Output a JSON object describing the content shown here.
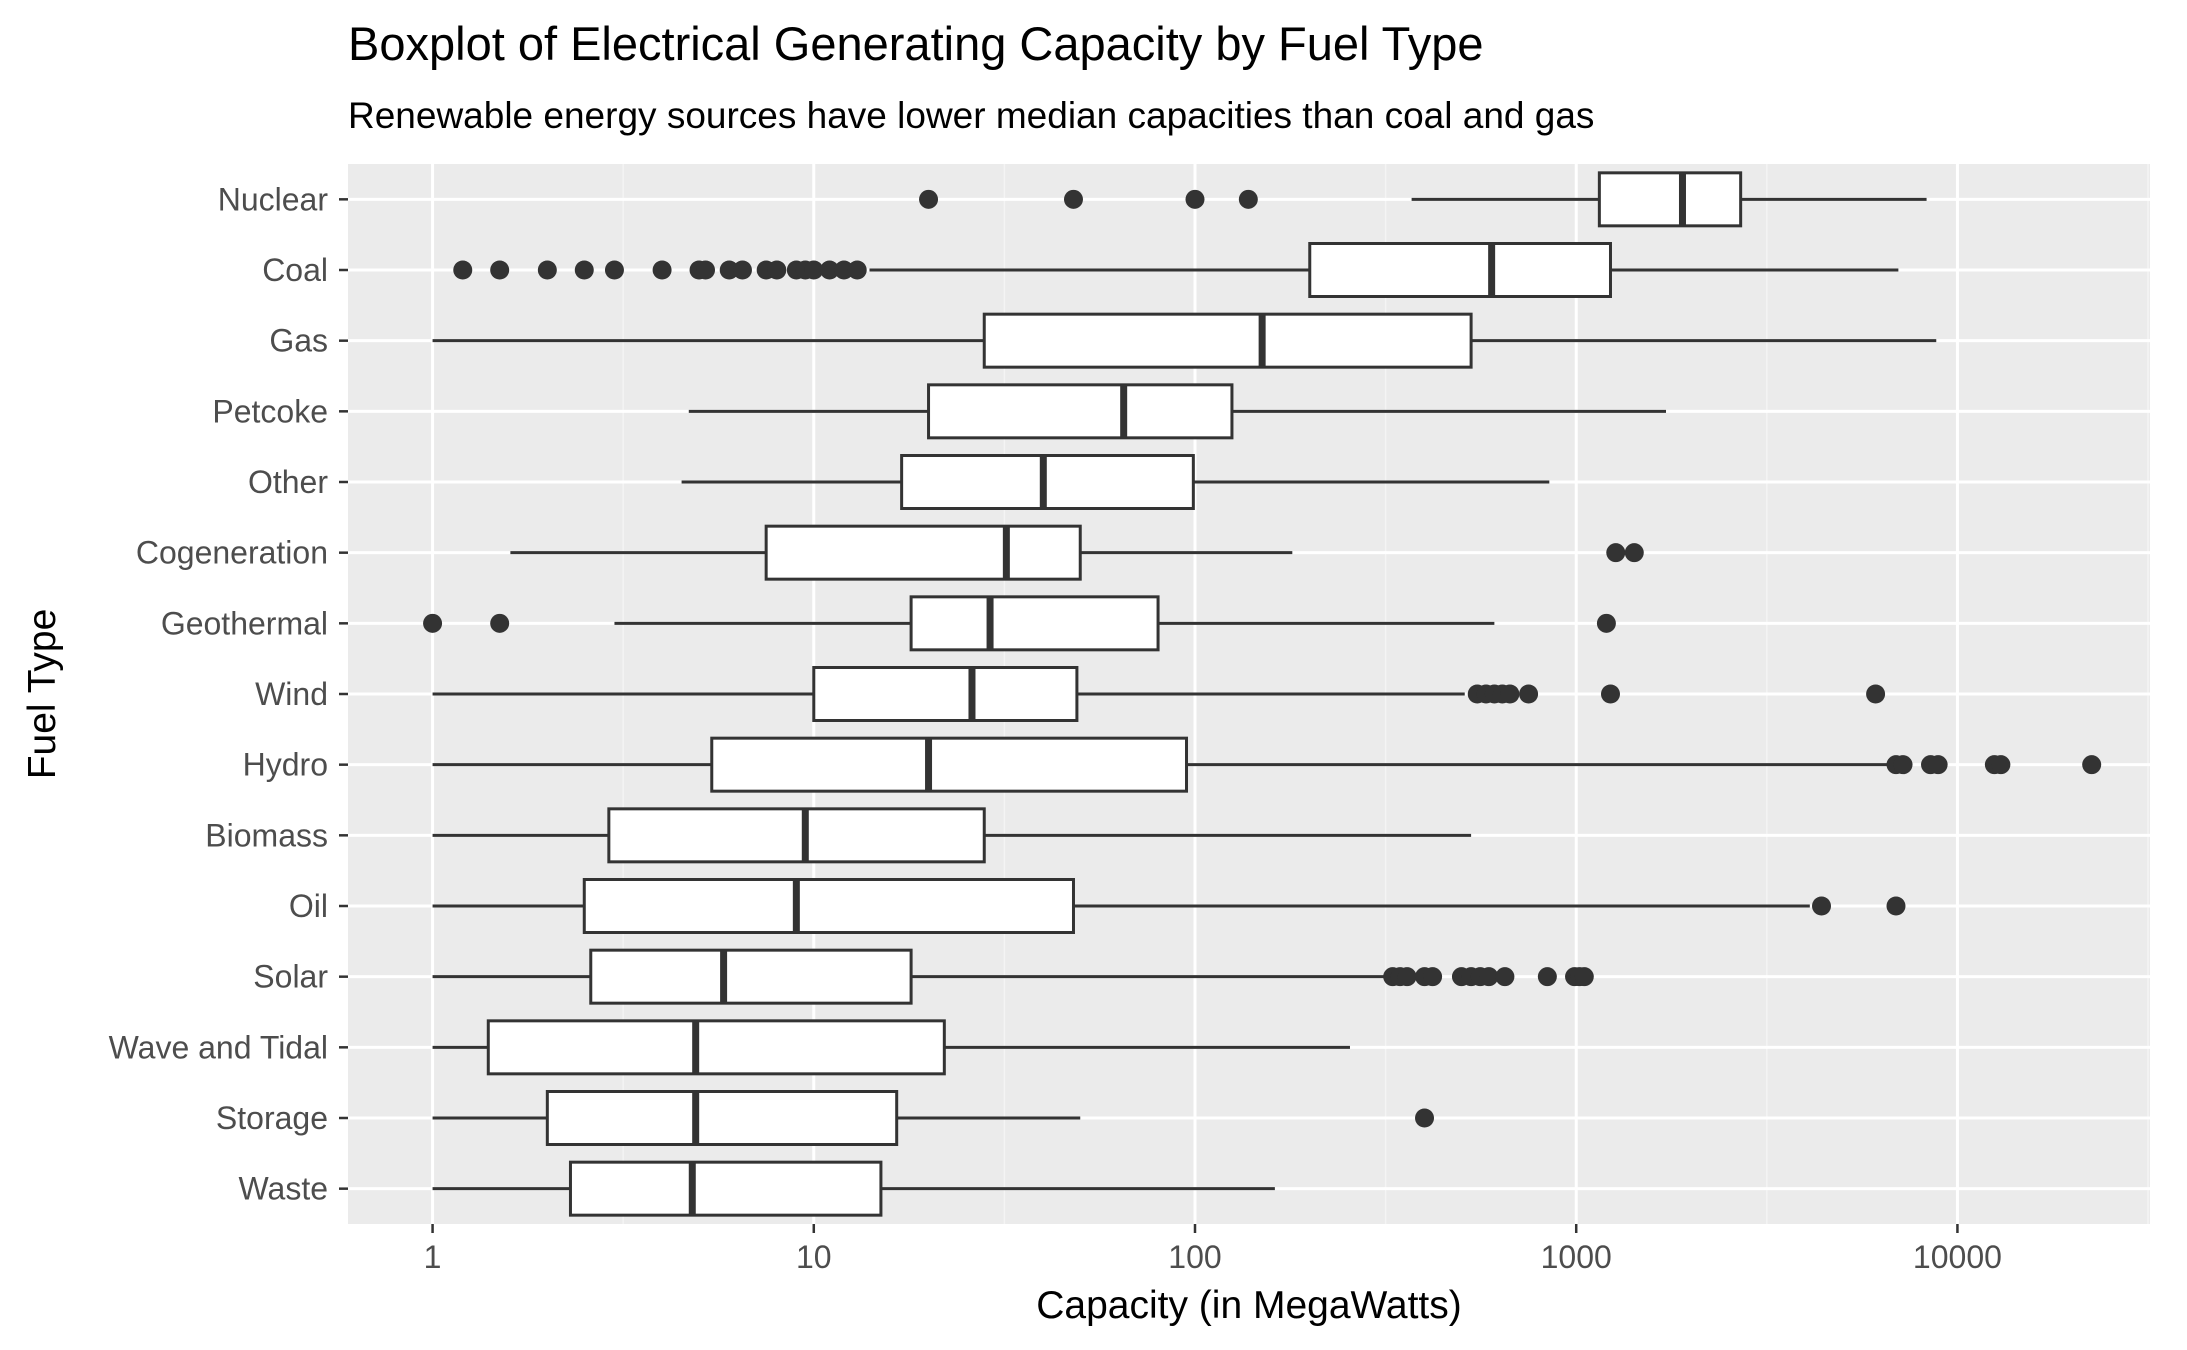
{
  "chart_data": {
    "type": "boxplot",
    "title": "Boxplot of Electrical Generating Capacity by Fuel Type",
    "subtitle": "Renewable energy sources have lower median capacities than coal and gas",
    "xlabel": "Capacity (in MegaWatts)",
    "ylabel": "Fuel Type",
    "x_scale": "log10",
    "xlim": [
      0.6,
      32000
    ],
    "x_ticks": [
      1,
      10,
      100,
      1000,
      10000
    ],
    "x_tick_labels": [
      "1",
      "10",
      "100",
      "1000",
      "10000"
    ],
    "grid": true,
    "legend": "none",
    "colors": {
      "panel_background": "#ebebeb",
      "grid_major": "#ffffff",
      "grid_minor": "#f4f4f4",
      "box_fill": "#ffffff",
      "box_stroke": "#333333",
      "outlier": "#333333",
      "tick_label": "#4d4d4d"
    },
    "categories": [
      "Nuclear",
      "Coal",
      "Gas",
      "Petcoke",
      "Other",
      "Cogeneration",
      "Geothermal",
      "Wind",
      "Hydro",
      "Biomass",
      "Oil",
      "Solar",
      "Wave and Tidal",
      "Storage",
      "Waste"
    ],
    "boxes": [
      {
        "category": "Nuclear",
        "whisker_low": 370,
        "q1": 1150,
        "median": 1900,
        "q3": 2700,
        "whisker_high": 8300,
        "outliers": [
          20,
          48,
          100,
          138
        ]
      },
      {
        "category": "Coal",
        "whisker_low": 14,
        "q1": 200,
        "median": 600,
        "q3": 1230,
        "whisker_high": 7000,
        "outliers": [
          1.2,
          1.5,
          2,
          2.5,
          3,
          4,
          5,
          5.2,
          6,
          6.5,
          7.5,
          8,
          9,
          9.5,
          10,
          11,
          12,
          13
        ]
      },
      {
        "category": "Gas",
        "whisker_low": 1,
        "q1": 28,
        "median": 150,
        "q3": 530,
        "whisker_high": 8800,
        "outliers": []
      },
      {
        "category": "Petcoke",
        "whisker_low": 4.7,
        "q1": 20,
        "median": 65,
        "q3": 125,
        "whisker_high": 1720,
        "outliers": []
      },
      {
        "category": "Other",
        "whisker_low": 4.5,
        "q1": 17,
        "median": 40,
        "q3": 99,
        "whisker_high": 850,
        "outliers": []
      },
      {
        "category": "Cogeneration",
        "whisker_low": 1.6,
        "q1": 7.5,
        "median": 32,
        "q3": 50,
        "whisker_high": 180,
        "outliers": [
          1270,
          1420
        ]
      },
      {
        "category": "Geothermal",
        "whisker_low": 3,
        "q1": 18,
        "median": 29,
        "q3": 80,
        "whisker_high": 610,
        "outliers": [
          1,
          1.5,
          1200
        ]
      },
      {
        "category": "Wind",
        "whisker_low": 1,
        "q1": 10,
        "median": 26,
        "q3": 49,
        "whisker_high": 510,
        "outliers": [
          550,
          580,
          610,
          640,
          670,
          750,
          1230,
          6100
        ]
      },
      {
        "category": "Hydro",
        "whisker_low": 1,
        "q1": 5.4,
        "median": 20,
        "q3": 95,
        "whisker_high": 6900,
        "outliers": [
          6900,
          7200,
          8500,
          8900,
          12500,
          13000,
          22500
        ]
      },
      {
        "category": "Biomass",
        "whisker_low": 1,
        "q1": 2.9,
        "median": 9.5,
        "q3": 28,
        "whisker_high": 530,
        "outliers": []
      },
      {
        "category": "Oil",
        "whisker_low": 1,
        "q1": 2.5,
        "median": 9,
        "q3": 48,
        "whisker_high": 4100,
        "outliers": [
          4400,
          6900
        ]
      },
      {
        "category": "Solar",
        "whisker_low": 1,
        "q1": 2.6,
        "median": 5.8,
        "q3": 18,
        "whisker_high": 320,
        "outliers": [
          330,
          345,
          360,
          400,
          420,
          500,
          530,
          560,
          590,
          650,
          840,
          990,
          1020,
          1050
        ]
      },
      {
        "category": "Wave and Tidal",
        "whisker_low": 1,
        "q1": 1.4,
        "median": 4.9,
        "q3": 22,
        "whisker_high": 255,
        "outliers": []
      },
      {
        "category": "Storage",
        "whisker_low": 1,
        "q1": 2,
        "median": 4.9,
        "q3": 16.5,
        "whisker_high": 50,
        "outliers": [
          400
        ]
      },
      {
        "category": "Waste",
        "whisker_low": 1,
        "q1": 2.3,
        "median": 4.8,
        "q3": 15,
        "whisker_high": 162,
        "outliers": []
      }
    ]
  }
}
